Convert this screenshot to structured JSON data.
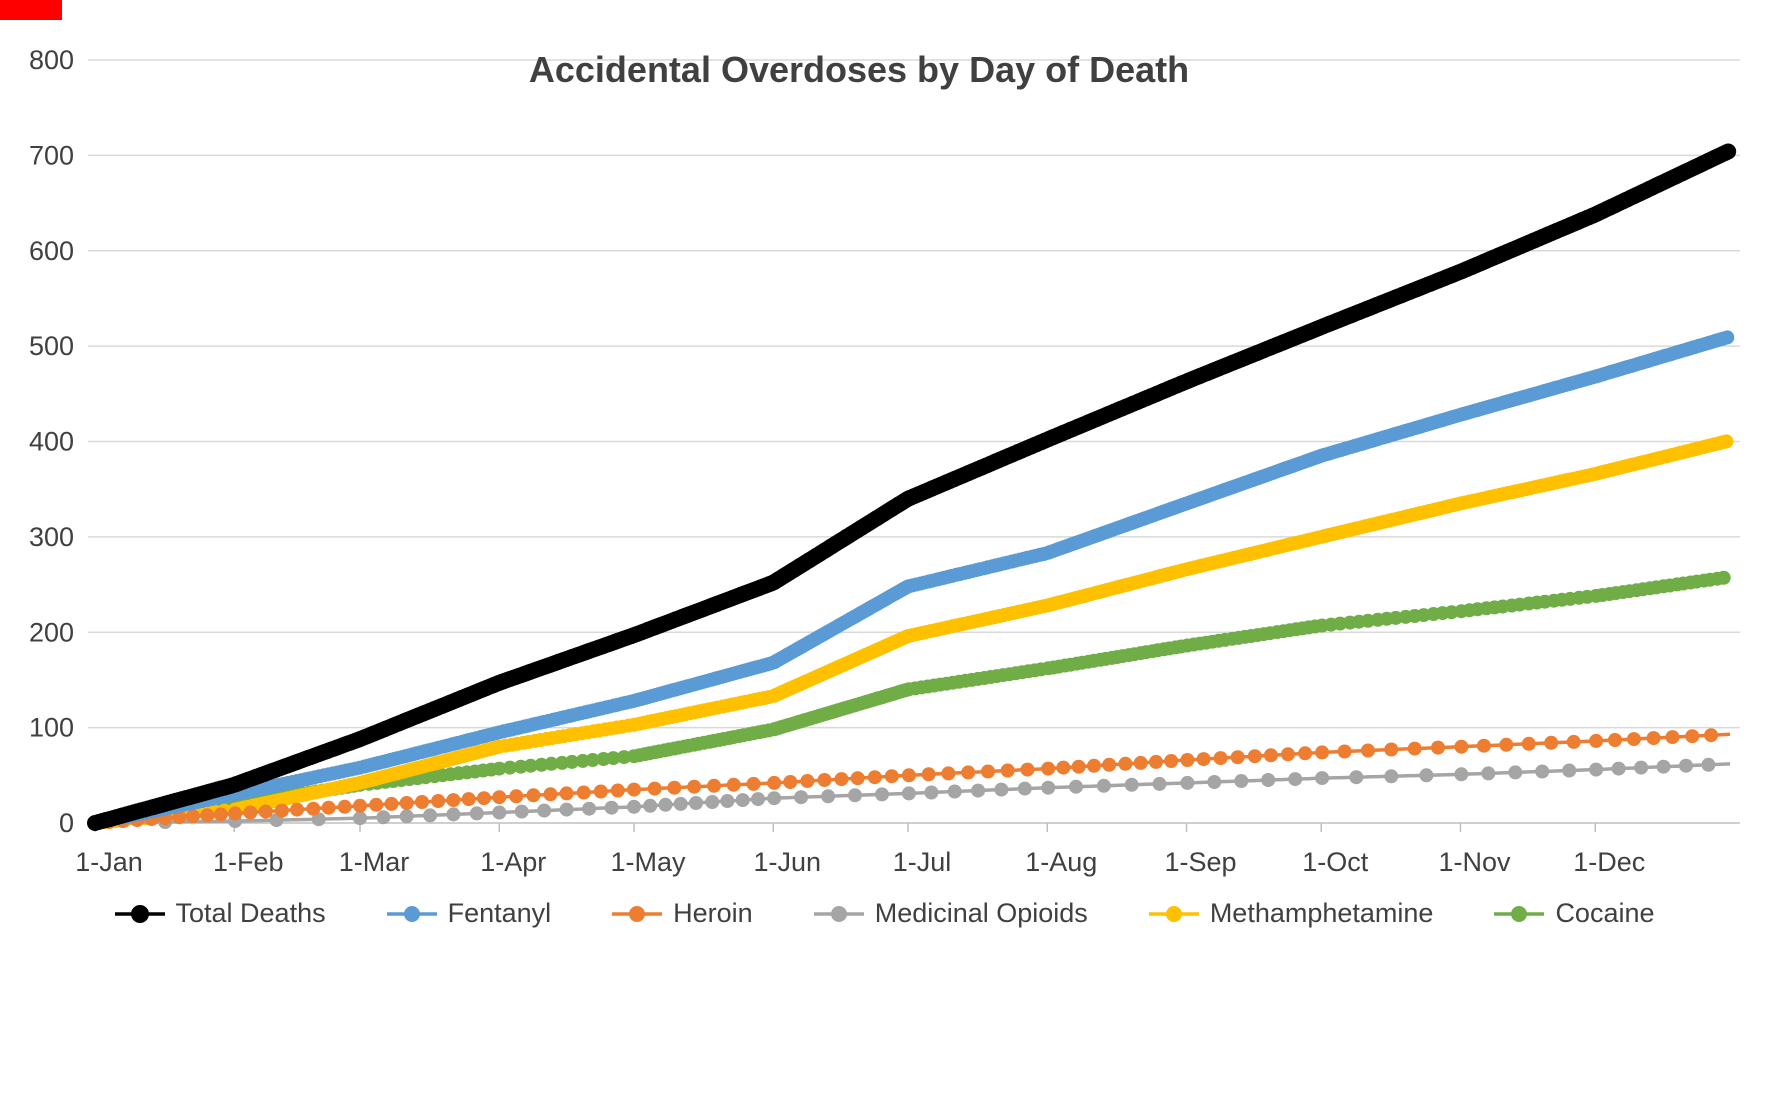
{
  "chart_data": {
    "type": "line",
    "title": "Accidental Overdoses by Day of Death",
    "x_tick_labels": [
      "1-Jan",
      "1-Feb",
      "1-Mar",
      "1-Apr",
      "1-May",
      "1-Jun",
      "1-Jul",
      "1-Aug",
      "1-Sep",
      "1-Oct",
      "1-Nov",
      "1-Dec"
    ],
    "month_start_days": [
      0,
      31,
      59,
      90,
      120,
      151,
      181,
      212,
      243,
      273,
      304,
      334
    ],
    "x_domain_days": [
      0,
      364
    ],
    "ylim": [
      0,
      800
    ],
    "ytick_step": 100,
    "grid": true,
    "legend_position": "bottom",
    "anchor_days": [
      0,
      31,
      59,
      90,
      120,
      151,
      181,
      212,
      243,
      273,
      304,
      334,
      364
    ],
    "series": [
      {
        "name": "Total Deaths",
        "color": "#000000",
        "values": [
          0,
          40,
          88,
          147,
          197,
          252,
          340,
          402,
          463,
          520,
          578,
          638,
          705
        ]
      },
      {
        "name": "Fentanyl",
        "color": "#5B9BD5",
        "values": [
          0,
          30,
          58,
          95,
          128,
          168,
          248,
          283,
          335,
          385,
          428,
          468,
          510
        ]
      },
      {
        "name": "Heroin",
        "color": "#ED7D31",
        "values": [
          0,
          10,
          18,
          27,
          35,
          42,
          50,
          57,
          66,
          74,
          80,
          86,
          93
        ]
      },
      {
        "name": "Medicinal Opioids",
        "color": "#A5A5A5",
        "values": [
          0,
          2,
          5,
          11,
          17,
          26,
          31,
          37,
          42,
          47,
          51,
          56,
          62
        ]
      },
      {
        "name": "Methamphetamine",
        "color": "#FFC000",
        "values": [
          0,
          14,
          42,
          80,
          103,
          133,
          196,
          228,
          266,
          300,
          335,
          366,
          401
        ]
      },
      {
        "name": "Cocaine",
        "color": "#70AD47",
        "values": [
          0,
          20,
          40,
          57,
          70,
          98,
          140,
          162,
          186,
          207,
          222,
          238,
          258
        ]
      }
    ]
  },
  "styles": {
    "title_color": "#404040",
    "axis_label_color": "#404040",
    "gridline_color": "#D9D9D9",
    "axis_line_color": "#BFBFBF",
    "background": "#FFFFFF",
    "top_left_strip_color": "#FF0000"
  }
}
